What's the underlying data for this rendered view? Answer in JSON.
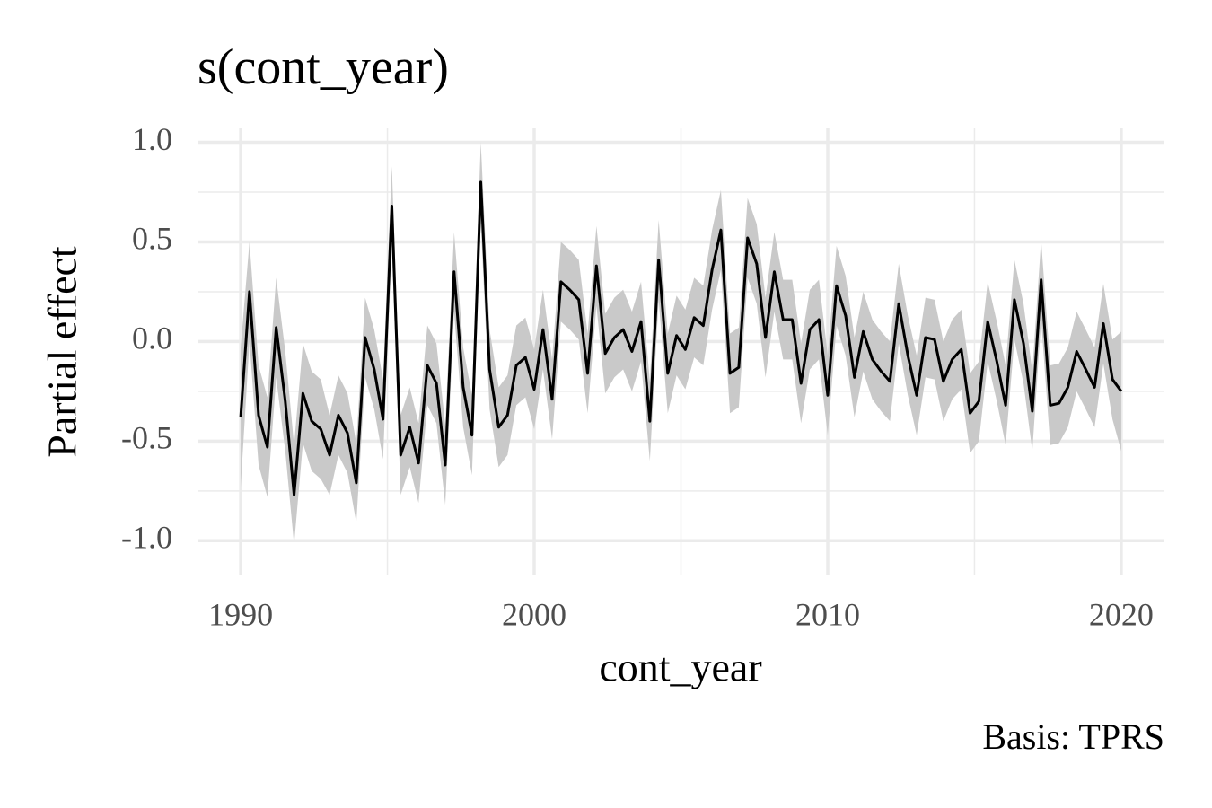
{
  "chart_data": {
    "type": "line",
    "title": "s(cont_year)",
    "x_label": "cont_year",
    "y_label": "Partial effect",
    "caption": "Basis: TPRS",
    "xlim": [
      1988.53,
      2021.47
    ],
    "ylim": [
      -1.17,
      1.07
    ],
    "xticks": [
      1990,
      2000,
      2010,
      2020
    ],
    "yticks": [
      {
        "value": 1,
        "label": "1.0"
      },
      {
        "value": 0.5,
        "label": "0.5"
      },
      {
        "value": 0,
        "label": "0.0"
      },
      {
        "value": -0.5,
        "label": "-0.5"
      },
      {
        "value": -1,
        "label": "-1.0"
      }
    ],
    "minor_xticks": [
      1995,
      2005,
      2015
    ],
    "minor_yticks": [
      -0.75,
      -0.25,
      0.25,
      0.75
    ],
    "grid": true,
    "x": [
      1990.0,
      1990.3,
      1990.61,
      1990.91,
      1991.21,
      1991.52,
      1991.82,
      1992.12,
      1992.42,
      1992.73,
      1993.03,
      1993.33,
      1993.64,
      1993.94,
      1994.24,
      1994.55,
      1994.85,
      1995.15,
      1995.45,
      1995.76,
      1996.06,
      1996.36,
      1996.67,
      1996.97,
      1997.27,
      1997.58,
      1997.88,
      1998.18,
      1998.48,
      1998.79,
      1999.09,
      1999.39,
      1999.7,
      2000.0,
      2000.3,
      2000.61,
      2000.91,
      2001.21,
      2001.52,
      2001.82,
      2002.12,
      2002.42,
      2002.73,
      2003.03,
      2003.33,
      2003.64,
      2003.94,
      2004.24,
      2004.55,
      2004.85,
      2005.15,
      2005.45,
      2005.76,
      2006.06,
      2006.36,
      2006.67,
      2006.97,
      2007.27,
      2007.58,
      2007.88,
      2008.18,
      2008.48,
      2008.79,
      2009.09,
      2009.39,
      2009.7,
      2010.0,
      2010.3,
      2010.61,
      2010.91,
      2011.21,
      2011.52,
      2011.82,
      2012.12,
      2012.42,
      2012.73,
      2013.03,
      2013.33,
      2013.64,
      2013.94,
      2014.24,
      2014.55,
      2014.85,
      2015.15,
      2015.45,
      2015.76,
      2016.06,
      2016.36,
      2016.67,
      2016.97,
      2017.27,
      2017.58,
      2017.88,
      2018.18,
      2018.48,
      2018.79,
      2019.09,
      2019.39,
      2019.7,
      2020.0
    ],
    "series": [
      {
        "color": "#000000",
        "band_color": "#c9c9c9",
        "values": [
          -0.38,
          0.25,
          -0.37,
          -0.53,
          0.07,
          -0.3,
          -0.77,
          -0.26,
          -0.4,
          -0.44,
          -0.57,
          -0.37,
          -0.46,
          -0.71,
          0.02,
          -0.14,
          -0.39,
          0.68,
          -0.57,
          -0.43,
          -0.61,
          -0.12,
          -0.21,
          -0.62,
          0.35,
          -0.23,
          -0.47,
          0.8,
          -0.14,
          -0.43,
          -0.37,
          -0.12,
          -0.08,
          -0.24,
          0.06,
          -0.29,
          0.3,
          0.26,
          0.21,
          -0.16,
          0.38,
          -0.06,
          0.02,
          0.06,
          -0.05,
          0.1,
          -0.4,
          0.41,
          -0.16,
          0.03,
          -0.04,
          0.12,
          0.08,
          0.36,
          0.56,
          -0.16,
          -0.13,
          0.52,
          0.39,
          0.02,
          0.35,
          0.11,
          0.11,
          -0.21,
          0.06,
          0.11,
          -0.27,
          0.28,
          0.13,
          -0.18,
          0.05,
          -0.09,
          -0.15,
          -0.2,
          0.19,
          -0.07,
          -0.27,
          0.02,
          0.01,
          -0.2,
          -0.09,
          -0.04,
          -0.36,
          -0.3,
          0.1,
          -0.1,
          -0.32,
          0.21,
          -0.01,
          -0.35,
          0.31,
          -0.32,
          -0.31,
          -0.23,
          -0.05,
          -0.14,
          -0.23,
          0.09,
          -0.19,
          -0.25
        ],
        "upper": [
          -0.03,
          0.5,
          -0.12,
          -0.28,
          0.32,
          -0.05,
          -0.52,
          -0.01,
          -0.15,
          -0.19,
          -0.37,
          -0.17,
          -0.26,
          -0.51,
          0.22,
          0.06,
          -0.19,
          0.88,
          -0.37,
          -0.23,
          -0.41,
          0.08,
          -0.01,
          -0.42,
          0.55,
          -0.03,
          -0.27,
          1.0,
          0.06,
          -0.23,
          -0.17,
          0.08,
          0.12,
          -0.04,
          0.26,
          -0.09,
          0.5,
          0.46,
          0.41,
          0.04,
          0.58,
          0.14,
          0.22,
          0.26,
          0.15,
          0.3,
          -0.2,
          0.61,
          0.04,
          0.23,
          0.16,
          0.32,
          0.28,
          0.56,
          0.76,
          0.04,
          0.07,
          0.72,
          0.59,
          0.22,
          0.55,
          0.31,
          0.31,
          -0.01,
          0.26,
          0.31,
          -0.07,
          0.48,
          0.33,
          0.02,
          0.25,
          0.11,
          0.05,
          0.0,
          0.39,
          0.13,
          -0.07,
          0.22,
          0.21,
          0.0,
          0.11,
          0.16,
          -0.16,
          -0.1,
          0.3,
          0.1,
          -0.12,
          0.41,
          0.19,
          -0.15,
          0.51,
          -0.12,
          -0.11,
          -0.03,
          0.15,
          0.06,
          -0.03,
          0.29,
          0.01,
          0.05
        ],
        "lower": [
          -0.73,
          0.0,
          -0.62,
          -0.78,
          -0.18,
          -0.55,
          -1.02,
          -0.51,
          -0.65,
          -0.69,
          -0.77,
          -0.57,
          -0.66,
          -0.91,
          -0.18,
          -0.34,
          -0.59,
          0.48,
          -0.77,
          -0.63,
          -0.81,
          -0.32,
          -0.41,
          -0.82,
          0.15,
          -0.43,
          -0.67,
          0.6,
          -0.34,
          -0.63,
          -0.57,
          -0.32,
          -0.28,
          -0.44,
          -0.14,
          -0.49,
          0.1,
          0.06,
          0.01,
          -0.36,
          0.18,
          -0.26,
          -0.18,
          -0.14,
          -0.25,
          -0.1,
          -0.6,
          0.21,
          -0.36,
          -0.17,
          -0.24,
          -0.08,
          -0.12,
          0.16,
          0.36,
          -0.36,
          -0.33,
          0.32,
          0.19,
          -0.18,
          0.15,
          -0.09,
          -0.09,
          -0.41,
          -0.14,
          -0.09,
          -0.47,
          0.08,
          -0.07,
          -0.38,
          -0.15,
          -0.29,
          -0.35,
          -0.4,
          -0.01,
          -0.27,
          -0.47,
          -0.18,
          -0.19,
          -0.4,
          -0.29,
          -0.24,
          -0.56,
          -0.5,
          -0.1,
          -0.3,
          -0.52,
          0.01,
          -0.21,
          -0.55,
          0.11,
          -0.52,
          -0.51,
          -0.43,
          -0.25,
          -0.34,
          -0.43,
          -0.11,
          -0.39,
          -0.55
        ]
      }
    ]
  }
}
